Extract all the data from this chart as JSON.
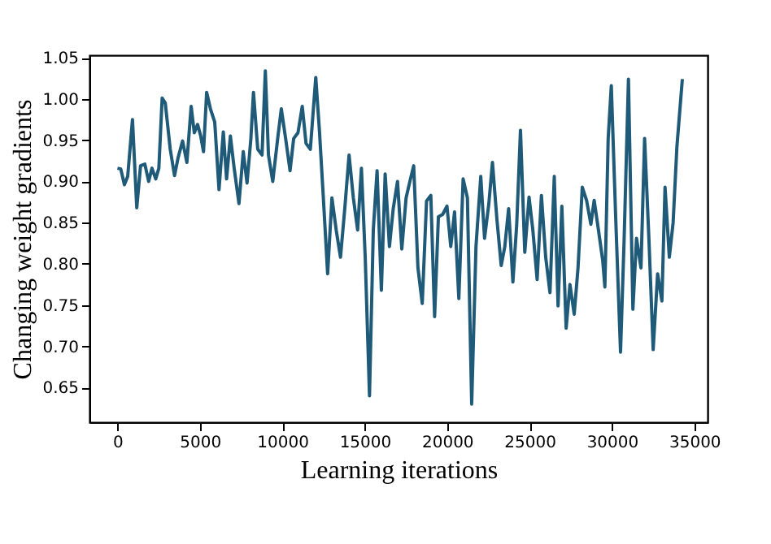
{
  "chart_data": {
    "type": "line",
    "xlabel": "Learning iterations",
    "ylabel": "Changing weight gradients",
    "x": [
      0,
      200,
      420,
      620,
      910,
      1170,
      1400,
      1660,
      1890,
      2090,
      2320,
      2510,
      2710,
      2900,
      3200,
      3460,
      3680,
      3950,
      4210,
      4470,
      4660,
      4860,
      5050,
      5220,
      5410,
      5640,
      5900,
      6160,
      6420,
      6620,
      6850,
      7080,
      7370,
      7630,
      7860,
      8090,
      8250,
      8510,
      8770,
      8970,
      9160,
      9420,
      9720,
      9940,
      10200,
      10470,
      10690,
      10950,
      11210,
      11440,
      11700,
      12030,
      12260,
      12490,
      12750,
      13010,
      13270,
      13530,
      13790,
      14050,
      14310,
      14570,
      14800,
      15030,
      15290,
      15520,
      15750,
      16010,
      16240,
      16500,
      16730,
      16990,
      17250,
      17510,
      17740,
      17970,
      18230,
      18490,
      18750,
      19010,
      19240,
      19470,
      19730,
      19990,
      20220,
      20450,
      20710,
      20970,
      21230,
      21490,
      21750,
      22040,
      22270,
      22530,
      22750,
      23020,
      23280,
      23500,
      23730,
      23990,
      24220,
      24450,
      24710,
      24970,
      25200,
      25460,
      25720,
      25980,
      26240,
      26500,
      26730,
      26960,
      27220,
      27450,
      27710,
      27940,
      28200,
      28460,
      28720,
      28920,
      29180,
      29440,
      29570,
      29770,
      29960,
      30220,
      30520,
      30740,
      31000,
      31270,
      31490,
      31760,
      31980,
      32240,
      32500,
      32770,
      33030,
      33220,
      33480,
      33710,
      33940,
      34270
    ],
    "series": [
      {
        "color": "#1f5a78",
        "values": [
          0.916,
          0.915,
          0.896,
          0.906,
          0.975,
          0.868,
          0.919,
          0.921,
          0.9,
          0.916,
          0.903,
          0.916,
          1.001,
          0.995,
          0.939,
          0.907,
          0.929,
          0.949,
          0.923,
          0.991,
          0.959,
          0.969,
          0.955,
          0.936,
          1.008,
          0.988,
          0.972,
          0.89,
          0.96,
          0.903,
          0.955,
          0.916,
          0.873,
          0.936,
          0.898,
          0.951,
          1.008,
          0.939,
          0.932,
          1.034,
          0.932,
          0.9,
          0.952,
          0.988,
          0.952,
          0.913,
          0.952,
          0.959,
          0.991,
          0.946,
          0.939,
          1.026,
          0.959,
          0.88,
          0.788,
          0.88,
          0.841,
          0.808,
          0.867,
          0.932,
          0.88,
          0.841,
          0.916,
          0.808,
          0.64,
          0.841,
          0.913,
          0.768,
          0.909,
          0.821,
          0.867,
          0.9,
          0.818,
          0.88,
          0.9,
          0.919,
          0.795,
          0.752,
          0.876,
          0.883,
          0.736,
          0.857,
          0.86,
          0.87,
          0.821,
          0.863,
          0.758,
          0.903,
          0.88,
          0.63,
          0.821,
          0.906,
          0.831,
          0.873,
          0.923,
          0.854,
          0.798,
          0.821,
          0.867,
          0.778,
          0.847,
          0.962,
          0.814,
          0.881,
          0.841,
          0.781,
          0.883,
          0.808,
          0.765,
          0.906,
          0.749,
          0.87,
          0.722,
          0.775,
          0.739,
          0.795,
          0.893,
          0.877,
          0.848,
          0.877,
          0.841,
          0.804,
          0.772,
          0.952,
          1.016,
          0.86,
          0.693,
          0.831,
          1.024,
          0.745,
          0.831,
          0.795,
          0.952,
          0.831,
          0.696,
          0.788,
          0.755,
          0.893,
          0.808,
          0.85,
          0.942,
          1.024
        ]
      }
    ],
    "xlim": [
      -1700,
      35800
    ],
    "xticks": [
      0,
      5000,
      10000,
      15000,
      20000,
      25000,
      30000,
      35000
    ],
    "ylim": [
      0.608,
      1.053
    ],
    "yticks": [
      {
        "value": 0.65,
        "label": "0.65"
      },
      {
        "value": 0.7,
        "label": "0.70"
      },
      {
        "value": 0.75,
        "label": "0.75"
      },
      {
        "value": 0.8,
        "label": "0.80"
      },
      {
        "value": 0.85,
        "label": "0.85"
      },
      {
        "value": 0.9,
        "label": "0.90"
      },
      {
        "value": 0.95,
        "label": "0.95"
      },
      {
        "value": 1.0,
        "label": "1.00"
      },
      {
        "value": 1.05,
        "label": "1.05"
      }
    ],
    "grid": false,
    "marker": "none",
    "line_style": "solid"
  }
}
